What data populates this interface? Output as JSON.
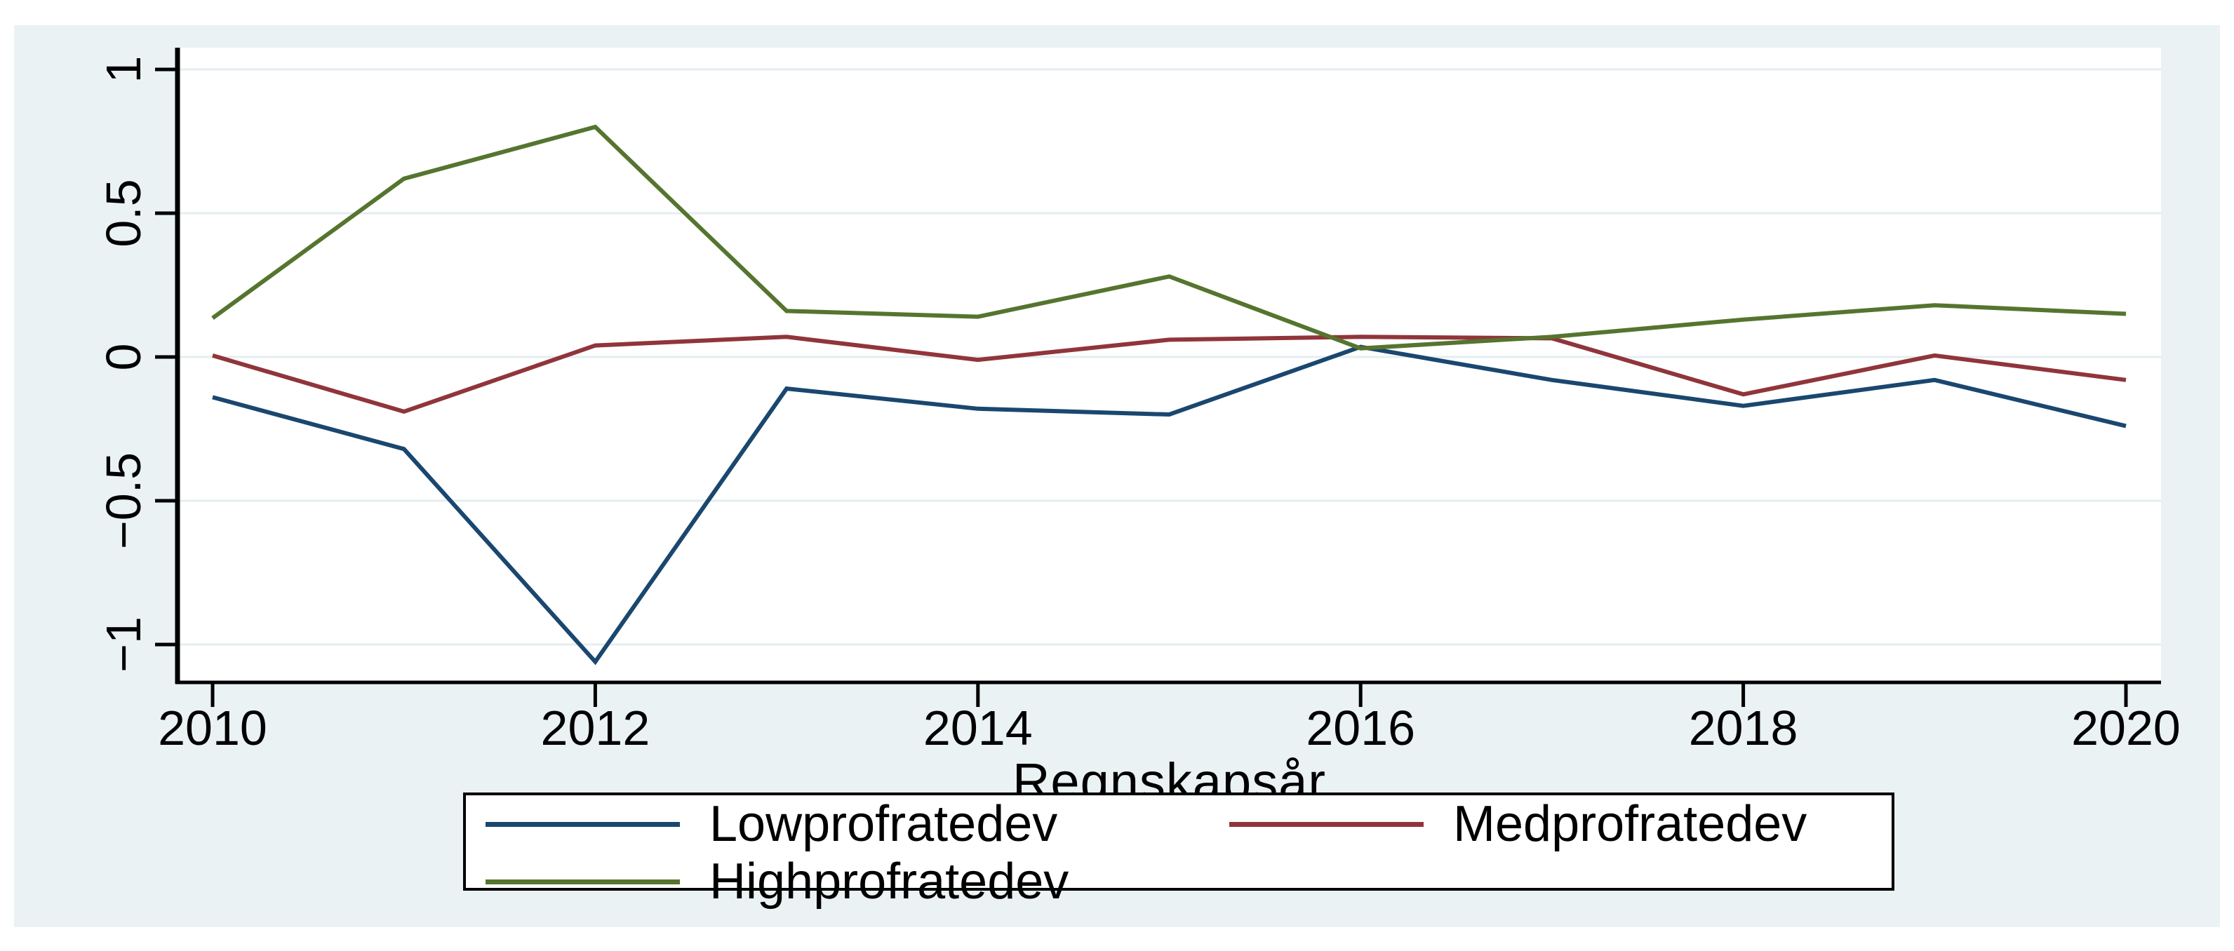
{
  "chart_data": {
    "type": "line",
    "title": "",
    "xlabel": "Regnskapsår",
    "ylabel": "",
    "x": [
      2010,
      2011,
      2012,
      2013,
      2014,
      2015,
      2016,
      2017,
      2018,
      2019,
      2020
    ],
    "series": [
      {
        "name": "Lowprofratedev",
        "color": "#1a476f",
        "values": [
          -0.14,
          -0.32,
          -1.06,
          -0.11,
          -0.18,
          -0.2,
          0.035,
          -0.08,
          -0.17,
          -0.08,
          -0.24
        ]
      },
      {
        "name": "Medprofratedev",
        "color": "#90353b",
        "values": [
          0.005,
          -0.19,
          0.04,
          0.07,
          -0.01,
          0.06,
          0.07,
          0.065,
          -0.13,
          0.005,
          -0.08
        ]
      },
      {
        "name": "Highprofratedev",
        "color": "#55752f",
        "values": [
          0.135,
          0.62,
          0.8,
          0.16,
          0.14,
          0.28,
          0.03,
          0.07,
          0.13,
          0.18,
          0.15
        ]
      }
    ],
    "xlim": [
      2009.82,
      2020.18
    ],
    "ylim": [
      -1.13,
      1.1
    ],
    "xticks": {
      "values": [
        2010,
        2012,
        2014,
        2016,
        2018,
        2020
      ],
      "labels": [
        "2010",
        "2012",
        "2014",
        "2016",
        "2018",
        "2020"
      ]
    },
    "yticks": {
      "values": [
        1,
        0.5,
        0,
        -0.5,
        -1
      ],
      "labels": [
        "1",
        "0.5",
        "0",
        "−0.5",
        "−1"
      ]
    },
    "grid": true,
    "legend_position": "bottom"
  },
  "axis": {
    "x_title": "Regnskapsår"
  },
  "legend": {
    "items": [
      {
        "label": "Lowprofratedev",
        "color": "#1a476f"
      },
      {
        "label": "Medprofratedev",
        "color": "#90353b"
      },
      {
        "label": "Highprofratedev",
        "color": "#55752f"
      }
    ]
  },
  "colors": {
    "background": "#eaf2f3",
    "plot_background": "#ffffff",
    "grid": "#e4eef0",
    "axis": "#000000",
    "text": "#000000"
  }
}
